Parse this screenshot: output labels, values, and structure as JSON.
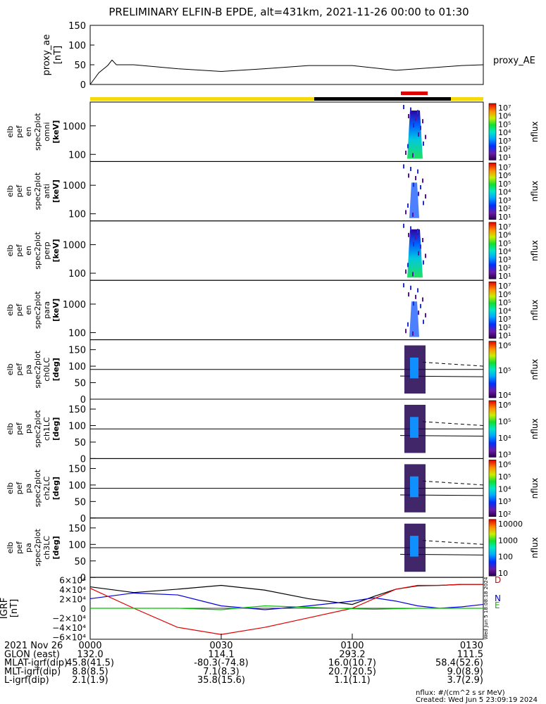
{
  "title": "PRELIMINARY ELFIN-B EPDE, alt=431km, 2021-11-26 00:00 to 01:30",
  "proxy": {
    "ylabel": "proxy_ae",
    "yunits": "[nT]",
    "legend": "proxy_AE",
    "yticks": [
      "150",
      "100",
      "50",
      "0"
    ],
    "chart_data": {
      "type": "line",
      "x_minutes": [
        0,
        2,
        4,
        5,
        6,
        10,
        20,
        30,
        40,
        50,
        60,
        70,
        80,
        85,
        90
      ],
      "values": [
        0,
        30,
        48,
        62,
        50,
        50,
        40,
        33,
        40,
        48,
        48,
        36,
        44,
        48,
        50
      ],
      "ylim": [
        0,
        150
      ]
    }
  },
  "bar_colors": {
    "sun": "#f5d90a",
    "shadow": "#000000",
    "sci": "#e00000"
  },
  "panels": [
    {
      "label": [
        "elb",
        "pef",
        "en",
        "spec2plot",
        "omni",
        "[keV]"
      ],
      "type": "energy",
      "yticks": [
        "1000",
        "100"
      ],
      "cbar_ticks": [
        "10⁷",
        "10⁶",
        "10⁵",
        "10⁴",
        "10³",
        "10²",
        "10¹"
      ],
      "cbar_label": "nflux"
    },
    {
      "label": [
        "elb",
        "pef",
        "en",
        "spec2plot",
        "anti",
        "[keV]"
      ],
      "type": "energy",
      "yticks": [
        "1000",
        "100"
      ],
      "cbar_ticks": [
        "10⁷",
        "10⁶",
        "10⁵",
        "10⁴",
        "10³",
        "10²",
        "10¹"
      ],
      "cbar_label": "nflux"
    },
    {
      "label": [
        "elb",
        "pef",
        "en",
        "spec2plot",
        "perp",
        "[keV]"
      ],
      "type": "energy",
      "yticks": [
        "1000",
        "100"
      ],
      "cbar_ticks": [
        "10⁷",
        "10⁶",
        "10⁵",
        "10⁴",
        "10³",
        "10²",
        "10¹"
      ],
      "cbar_label": "nflux"
    },
    {
      "label": [
        "elb",
        "pef",
        "en",
        "spec2plot",
        "para",
        "[keV]"
      ],
      "type": "energy",
      "yticks": [
        "1000",
        "100"
      ],
      "cbar_ticks": [
        "10⁷",
        "10⁶",
        "10⁵",
        "10⁴",
        "10³",
        "10²",
        "10¹"
      ],
      "cbar_label": "nflux"
    },
    {
      "label": [
        "elb",
        "pef",
        "pa",
        "spec2plot",
        "ch0LC",
        "[deg]"
      ],
      "type": "pitch",
      "yticks": [
        "150",
        "100",
        "50",
        "0"
      ],
      "cbar_ticks": [
        "10⁶",
        "10⁵",
        "10⁴"
      ],
      "cbar_label": "nflux"
    },
    {
      "label": [
        "elb",
        "pef",
        "pa",
        "spec2plot",
        "ch1LC",
        "[deg]"
      ],
      "type": "pitch",
      "yticks": [
        "150",
        "100",
        "50",
        "0"
      ],
      "cbar_ticks": [
        "10⁶",
        "10⁵",
        "10⁴",
        "10³"
      ],
      "cbar_label": "nflux"
    },
    {
      "label": [
        "elb",
        "pef",
        "pa",
        "spec2plot",
        "ch2LC",
        "[deg]"
      ],
      "type": "pitch",
      "yticks": [
        "150",
        "100",
        "50",
        "0"
      ],
      "cbar_ticks": [
        "10⁶",
        "10⁵",
        "10⁴",
        "10³",
        "10²"
      ],
      "cbar_label": "nflux"
    },
    {
      "label": [
        "elb",
        "pef",
        "pa",
        "spec2plot",
        "ch3LC",
        "[deg]"
      ],
      "type": "pitch",
      "yticks": [
        "150",
        "100",
        "50",
        "0"
      ],
      "cbar_ticks": [
        "10000",
        "1000",
        "100",
        "10"
      ],
      "cbar_label": "nflux"
    }
  ],
  "igrf": {
    "ylabel": "IGRF",
    "yunits": "[nT]",
    "yticks": [
      "6×10⁴",
      "4×10⁴",
      "2×10⁴",
      "0",
      "−2×10⁴",
      "−4×10⁴",
      "−6×10⁴"
    ],
    "legend": [
      "D",
      "N",
      "E"
    ],
    "colors": {
      "black": "#000000",
      "blue": "#0000e0",
      "red": "#e00000",
      "green": "#00c000"
    },
    "stamp": "Wed Jun 5 18:08:18 2024",
    "chart_data": {
      "type": "line",
      "x_minutes": [
        0,
        10,
        20,
        30,
        40,
        50,
        60,
        65,
        70,
        75,
        80,
        85,
        90
      ],
      "series": [
        {
          "name": "black",
          "values": [
            45000,
            33000,
            40000,
            48000,
            38000,
            20000,
            8000,
            25000,
            40000,
            47000,
            48000,
            50000,
            50000
          ]
        },
        {
          "name": "blue",
          "values": [
            20000,
            32000,
            28000,
            5000,
            -3000,
            5000,
            15000,
            22000,
            15000,
            5000,
            0,
            3000,
            8000
          ]
        },
        {
          "name": "red",
          "values": [
            42000,
            0,
            -40000,
            -55000,
            -40000,
            -20000,
            0,
            20000,
            40000,
            48000,
            48000,
            50000,
            50000
          ]
        },
        {
          "name": "green",
          "values": [
            0,
            0,
            0,
            -3000,
            5000,
            2000,
            -1000,
            -2000,
            -1000,
            0,
            0,
            0,
            0
          ]
        }
      ],
      "ylim": [
        -65000,
        65000
      ]
    }
  },
  "xticks": [
    "0000",
    "0030",
    "0100",
    "0130"
  ],
  "footer": {
    "rows": [
      {
        "label": "2021 Nov 26",
        "values": [
          "0000",
          "0030",
          "0100",
          "0130"
        ]
      },
      {
        "label": "GLON (east)",
        "values": [
          "132.0",
          "114.1",
          "293.2",
          "111.5"
        ]
      },
      {
        "label": "MLAT-igrf(dip)",
        "values": [
          "45.8(41.5)",
          "-80.3(-74.8)",
          "16.0(10.7)",
          "58.4(52.6)"
        ]
      },
      {
        "label": "MLT-igrf(dip)",
        "values": [
          "8.8(8.5)",
          "7.1(8.3)",
          "20.7(20.5)",
          "9.0(8.9)"
        ]
      },
      {
        "label": "L-igrf(dip)",
        "values": [
          "2.1(1.9)",
          "35.8(15.6)",
          "1.1(1.1)",
          "3.7(2.9)"
        ]
      }
    ],
    "units": "nflux: #/(cm^2 s sr MeV)",
    "created": "Created: Wed Jun  5 23:09:19 2024"
  }
}
